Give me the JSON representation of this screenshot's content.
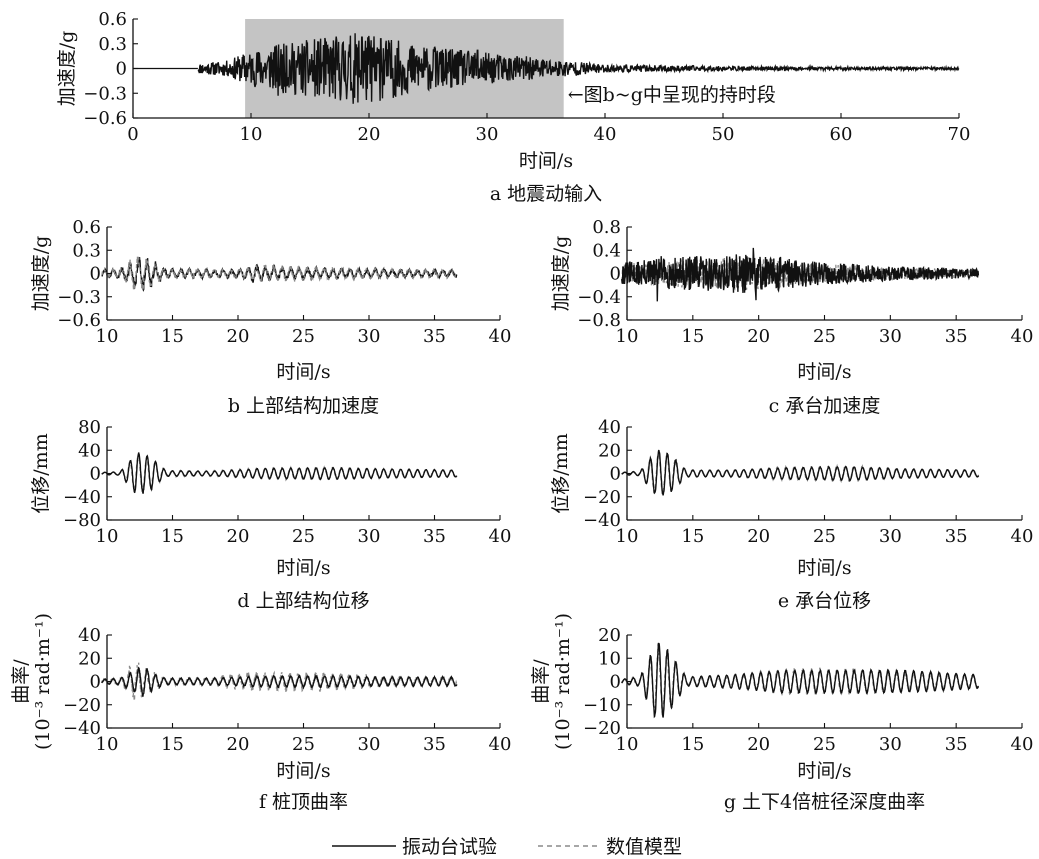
{
  "figure": {
    "legend": [
      {
        "label": "振动台试验",
        "style": "solid",
        "color": "#111111"
      },
      {
        "label": "数值模型",
        "style": "dashed",
        "color": "#8a8a8a"
      }
    ],
    "annotation": "←图b~g中呈现的持时段"
  },
  "chart_data": [
    {
      "id": "a",
      "type": "line",
      "caption": "a 地震动输入",
      "xlabel": "时间/s",
      "ylabel": "加速度/g",
      "xlim": [
        0,
        70
      ],
      "ylim": [
        -0.6,
        0.6
      ],
      "xticks": [
        0,
        10,
        20,
        30,
        40,
        50,
        60,
        70
      ],
      "yticks": [
        -0.6,
        -0.3,
        0,
        0.3,
        0.6
      ],
      "ytick_labels": [
        "−0.6",
        "−0.3",
        "0",
        "0.3",
        "0.6"
      ],
      "shaded_interval": [
        9.5,
        36.5
      ],
      "series": [
        {
          "style": "solid",
          "kind": "noise",
          "t0": 5.5,
          "t1": 70,
          "dt": 0.04,
          "seed": 11,
          "env": [
            [
              0,
              0
            ],
            [
              5.5,
              0.04
            ],
            [
              8,
              0.06
            ],
            [
              9.5,
              0.12
            ],
            [
              12,
              0.18
            ],
            [
              19.5,
              0.28
            ],
            [
              24,
              0.18
            ],
            [
              30,
              0.12
            ],
            [
              36,
              0.07
            ],
            [
              40,
              0.03
            ],
            [
              50,
              0.018
            ],
            [
              60,
              0.012
            ],
            [
              70,
              0.01
            ]
          ],
          "spikes": [
            [
              12.3,
              -0.33
            ],
            [
              13.0,
              0.27
            ],
            [
              11.7,
              0.2
            ],
            [
              16.5,
              0.28
            ],
            [
              19.4,
              0.38
            ],
            [
              21.0,
              0.36
            ],
            [
              18.6,
              -0.25
            ],
            [
              23.5,
              0.24
            ],
            [
              27.0,
              -0.22
            ],
            [
              29.2,
              0.22
            ],
            [
              15.5,
              -0.2
            ],
            [
              25.5,
              0.2
            ]
          ]
        }
      ]
    },
    {
      "id": "b",
      "type": "line",
      "caption": "b 上部结构加速度",
      "xlabel": "时间/s",
      "ylabel": "加速度/g",
      "xlim": [
        10,
        40
      ],
      "ylim": [
        -0.6,
        0.6
      ],
      "xticks": [
        10,
        15,
        20,
        25,
        30,
        35,
        40
      ],
      "yticks": [
        -0.6,
        -0.3,
        0,
        0.3,
        0.6
      ],
      "ytick_labels": [
        "−0.6",
        "−0.3",
        "0",
        "0.3",
        "0.6"
      ],
      "series": [
        {
          "style": "solid",
          "kind": "osc",
          "t0": 9.6,
          "t1": 36.7,
          "dt": 0.02,
          "seed": 21,
          "freq": 1.55,
          "noise": 0.35,
          "env": [
            [
              9.6,
              0.06
            ],
            [
              11,
              0.07
            ],
            [
              12.3,
              0.26
            ],
            [
              13.3,
              0.2
            ],
            [
              14.5,
              0.07
            ],
            [
              20,
              0.06
            ],
            [
              21,
              0.12
            ],
            [
              25,
              0.09
            ],
            [
              30,
              0.07
            ],
            [
              36.7,
              0.05
            ]
          ]
        },
        {
          "style": "dashed",
          "kind": "osc",
          "t0": 9.6,
          "t1": 36.7,
          "dt": 0.02,
          "seed": 22,
          "freq": 1.55,
          "noise": 0.25,
          "phase": 0.4,
          "env": [
            [
              9.6,
              0.05
            ],
            [
              11,
              0.06
            ],
            [
              12.3,
              0.28
            ],
            [
              13.3,
              0.18
            ],
            [
              14.5,
              0.06
            ],
            [
              20,
              0.06
            ],
            [
              22,
              0.12
            ],
            [
              25,
              0.1
            ],
            [
              30,
              0.07
            ],
            [
              36.7,
              0.05
            ]
          ]
        }
      ]
    },
    {
      "id": "c",
      "type": "line",
      "caption": "c 承台加速度",
      "xlabel": "时间/s",
      "ylabel": "加速度/g",
      "xlim": [
        10,
        40
      ],
      "ylim": [
        -0.8,
        0.8
      ],
      "xticks": [
        10,
        15,
        20,
        25,
        30,
        35,
        40
      ],
      "yticks": [
        -0.8,
        -0.4,
        0,
        0.4,
        0.8
      ],
      "ytick_labels": [
        "−0.8",
        "−0.4",
        "0",
        "0.4",
        "0.8"
      ],
      "series": [
        {
          "style": "dashed",
          "kind": "noise",
          "t0": 9.6,
          "t1": 36.7,
          "dt": 0.03,
          "seed": 32,
          "env": [
            [
              9.6,
              0.1
            ],
            [
              12,
              0.14
            ],
            [
              19.5,
              0.18
            ],
            [
              25,
              0.1
            ],
            [
              30,
              0.07
            ],
            [
              36.7,
              0.04
            ]
          ],
          "spikes": []
        },
        {
          "style": "solid",
          "kind": "noise",
          "t0": 9.6,
          "t1": 36.7,
          "dt": 0.03,
          "seed": 31,
          "env": [
            [
              9.6,
              0.12
            ],
            [
              12,
              0.16
            ],
            [
              19.5,
              0.22
            ],
            [
              25,
              0.12
            ],
            [
              30,
              0.08
            ],
            [
              36.7,
              0.05
            ]
          ],
          "spikes": [
            [
              12.3,
              -0.48
            ],
            [
              12.6,
              0.3
            ],
            [
              19.6,
              0.44
            ],
            [
              19.8,
              -0.46
            ],
            [
              15.2,
              0.2
            ],
            [
              22.5,
              0.18
            ]
          ]
        }
      ]
    },
    {
      "id": "d",
      "type": "line",
      "caption": "d 上部结构位移",
      "xlabel": "时间/s",
      "ylabel": "位移/mm",
      "xlim": [
        10,
        40
      ],
      "ylim": [
        -80,
        80
      ],
      "xticks": [
        10,
        15,
        20,
        25,
        30,
        35,
        40
      ],
      "yticks": [
        -80,
        -40,
        0,
        40,
        80
      ],
      "ytick_labels": [
        "−80",
        "−40",
        "0",
        "40",
        "80"
      ],
      "series": [
        {
          "style": "dashed",
          "kind": "osc",
          "t0": 9.6,
          "t1": 36.7,
          "dt": 0.02,
          "seed": 42,
          "freq": 1.55,
          "noise": 0.08,
          "phase": 0.3,
          "env": [
            [
              9.6,
              2
            ],
            [
              11,
              3
            ],
            [
              12.3,
              36
            ],
            [
              13.3,
              28
            ],
            [
              14.5,
              6
            ],
            [
              18,
              5
            ],
            [
              22,
              10
            ],
            [
              27,
              11
            ],
            [
              31,
              8
            ],
            [
              36.7,
              6
            ]
          ]
        },
        {
          "style": "solid",
          "kind": "osc",
          "t0": 9.6,
          "t1": 36.7,
          "dt": 0.02,
          "seed": 41,
          "freq": 1.55,
          "noise": 0.05,
          "env": [
            [
              9.6,
              2
            ],
            [
              11,
              3
            ],
            [
              12.3,
              38
            ],
            [
              13.3,
              30
            ],
            [
              14.5,
              5
            ],
            [
              18,
              4
            ],
            [
              22,
              9
            ],
            [
              27,
              10
            ],
            [
              31,
              8
            ],
            [
              36.7,
              6
            ]
          ]
        }
      ]
    },
    {
      "id": "e",
      "type": "line",
      "caption": "e 承台位移",
      "xlabel": "时间/s",
      "ylabel": "位移/mm",
      "xlim": [
        10,
        40
      ],
      "ylim": [
        -40,
        40
      ],
      "xticks": [
        10,
        15,
        20,
        25,
        30,
        35,
        40
      ],
      "yticks": [
        -40,
        -20,
        0,
        20,
        40
      ],
      "ytick_labels": [
        "−40",
        "−20",
        "0",
        "20",
        "40"
      ],
      "series": [
        {
          "style": "dashed",
          "kind": "osc",
          "t0": 9.6,
          "t1": 36.7,
          "dt": 0.02,
          "seed": 52,
          "freq": 1.55,
          "noise": 0.08,
          "phase": 0.3,
          "env": [
            [
              9.6,
              1
            ],
            [
              11,
              2
            ],
            [
              12.3,
              20
            ],
            [
              13.3,
              16
            ],
            [
              14.5,
              3
            ],
            [
              18,
              3
            ],
            [
              22,
              6
            ],
            [
              27,
              7
            ],
            [
              31,
              4
            ],
            [
              36.7,
              3
            ]
          ]
        },
        {
          "style": "solid",
          "kind": "osc",
          "t0": 9.6,
          "t1": 36.7,
          "dt": 0.02,
          "seed": 51,
          "freq": 1.55,
          "noise": 0.05,
          "env": [
            [
              9.6,
              1
            ],
            [
              11,
              2
            ],
            [
              12.3,
              21
            ],
            [
              13.3,
              17
            ],
            [
              14.5,
              3
            ],
            [
              18,
              3
            ],
            [
              22,
              5
            ],
            [
              27,
              6
            ],
            [
              31,
              4
            ],
            [
              36.7,
              3
            ]
          ]
        }
      ]
    },
    {
      "id": "f",
      "type": "line",
      "caption": "f 桩顶曲率",
      "xlabel": "时间/s",
      "ylabel_lines": [
        "曲率/",
        "(10⁻³ rad·m⁻¹)"
      ],
      "xlim": [
        10,
        40
      ],
      "ylim": [
        -40,
        40
      ],
      "xticks": [
        10,
        15,
        20,
        25,
        30,
        35,
        40
      ],
      "yticks": [
        -40,
        -20,
        0,
        20,
        40
      ],
      "ytick_labels": [
        "−40",
        "−20",
        "0",
        "20",
        "40"
      ],
      "series": [
        {
          "style": "dashed",
          "kind": "osc",
          "t0": 9.6,
          "t1": 36.7,
          "dt": 0.02,
          "seed": 62,
          "freq": 1.55,
          "noise": 0.3,
          "phase": 0.5,
          "env": [
            [
              9.6,
              3
            ],
            [
              11,
              4
            ],
            [
              12.2,
              20
            ],
            [
              13,
              12
            ],
            [
              14.5,
              4
            ],
            [
              18,
              4
            ],
            [
              20,
              8
            ],
            [
              22,
              9
            ],
            [
              27,
              9
            ],
            [
              31,
              5
            ],
            [
              36.7,
              4
            ]
          ]
        },
        {
          "style": "solid",
          "kind": "osc",
          "t0": 9.6,
          "t1": 36.7,
          "dt": 0.02,
          "seed": 61,
          "freq": 1.55,
          "noise": 0.1,
          "env": [
            [
              9.6,
              2
            ],
            [
              11,
              3
            ],
            [
              12.8,
              14
            ],
            [
              13.6,
              7
            ],
            [
              14.5,
              3
            ],
            [
              18,
              3
            ],
            [
              22,
              5
            ],
            [
              27,
              5
            ],
            [
              31,
              4
            ],
            [
              36.7,
              4
            ]
          ]
        }
      ]
    },
    {
      "id": "g",
      "type": "line",
      "caption": "g 土下4倍桩径深度曲率",
      "xlabel": "时间/s",
      "ylabel_lines": [
        "曲率/",
        "(10⁻³ rad·m⁻¹)"
      ],
      "xlim": [
        10,
        40
      ],
      "ylim": [
        -20,
        20
      ],
      "xticks": [
        10,
        15,
        20,
        25,
        30,
        35,
        40
      ],
      "yticks": [
        -20,
        -10,
        0,
        10,
        20
      ],
      "ytick_labels": [
        "−20",
        "−10",
        "0",
        "10",
        "20"
      ],
      "series": [
        {
          "style": "dashed",
          "kind": "osc",
          "t0": 9.6,
          "t1": 36.7,
          "dt": 0.02,
          "seed": 72,
          "freq": 1.55,
          "noise": 0.15,
          "phase": 0.3,
          "env": [
            [
              9.6,
              1
            ],
            [
              11,
              2
            ],
            [
              12.3,
              17
            ],
            [
              13.3,
              12
            ],
            [
              14.5,
              2
            ],
            [
              18,
              2
            ],
            [
              22,
              6
            ],
            [
              27,
              6
            ],
            [
              31,
              4
            ],
            [
              36.7,
              3
            ]
          ]
        },
        {
          "style": "solid",
          "kind": "osc",
          "t0": 9.6,
          "t1": 36.7,
          "dt": 0.02,
          "seed": 71,
          "freq": 1.55,
          "noise": 0.06,
          "env": [
            [
              9.6,
              1
            ],
            [
              11,
              2
            ],
            [
              12.3,
              18
            ],
            [
              13.3,
              13
            ],
            [
              14.5,
              2
            ],
            [
              18,
              3
            ],
            [
              22,
              5
            ],
            [
              27,
              5
            ],
            [
              31,
              5
            ],
            [
              36.7,
              3
            ]
          ]
        }
      ]
    }
  ]
}
